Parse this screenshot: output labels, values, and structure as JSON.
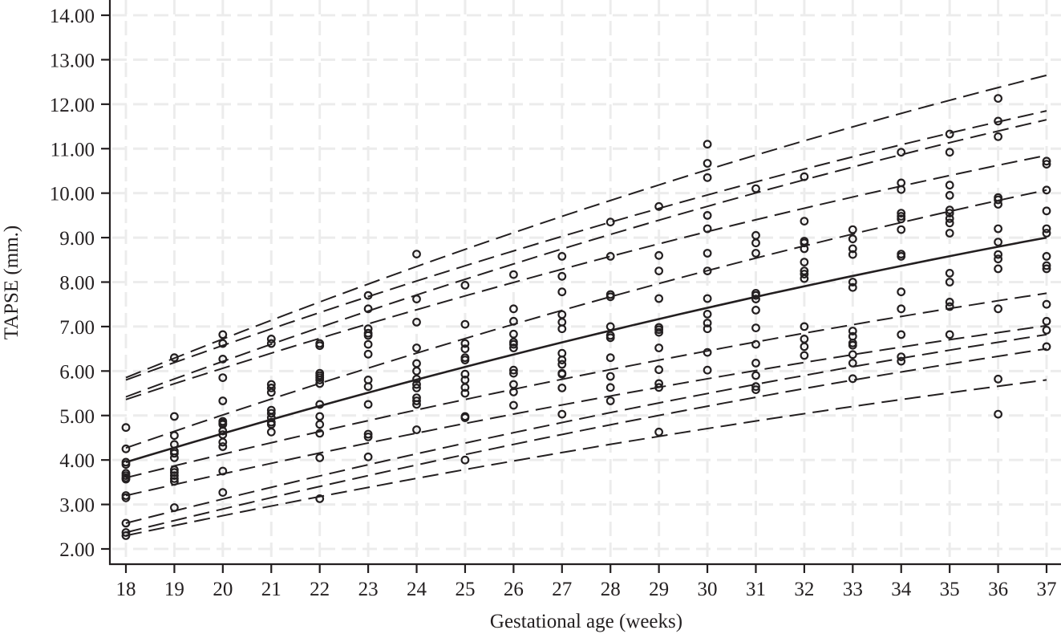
{
  "chart_data": {
    "type": "scatter",
    "title": "",
    "xlabel": "Gestational age (weeks)",
    "ylabel": "TAPSE (mm.)",
    "xlim": [
      18,
      37
    ],
    "ylim": [
      2.0,
      14.0
    ],
    "x_ticks": [
      18,
      19,
      20,
      21,
      22,
      23,
      24,
      25,
      26,
      27,
      28,
      29,
      30,
      31,
      32,
      33,
      34,
      35,
      36,
      37
    ],
    "y_ticks": [
      "2.00",
      "3.00",
      "4.00",
      "5.00",
      "6.00",
      "7.00",
      "8.00",
      "9.00",
      "10.00",
      "11.00",
      "12.00",
      "13.00",
      "14.00"
    ],
    "grid": true,
    "legend": null,
    "reference_curves": [
      {
        "name": "upper-percentile-1",
        "style": "dashed",
        "x": [
          18,
          37
        ],
        "y_start": 5.85,
        "y_end": 12.65
      },
      {
        "name": "upper-percentile-2",
        "style": "dashed",
        "x": [
          18,
          37
        ],
        "y_start": 5.8,
        "y_end": 11.85
      },
      {
        "name": "upper-percentile-3",
        "style": "dashed",
        "x": [
          18,
          37
        ],
        "y_start": 5.42,
        "y_end": 11.65
      },
      {
        "name": "upper-percentile-4",
        "style": "dashed",
        "x": [
          18,
          37
        ],
        "y_start": 5.36,
        "y_end": 10.85
      },
      {
        "name": "upper-percentile-5",
        "style": "dashed",
        "x": [
          18,
          37
        ],
        "y_start": 4.27,
        "y_end": 10.07
      },
      {
        "name": "mean",
        "style": "solid",
        "x": [
          18,
          37
        ],
        "y_start": 3.95,
        "y_end": 9.0
      },
      {
        "name": "lower-percentile-1",
        "style": "dashed",
        "x": [
          18,
          37
        ],
        "y_start": 3.6,
        "y_end": 7.75
      },
      {
        "name": "lower-percentile-2",
        "style": "dashed",
        "x": [
          18,
          37
        ],
        "y_start": 3.2,
        "y_end": 7.02
      },
      {
        "name": "lower-percentile-3",
        "style": "dashed",
        "x": [
          18,
          37
        ],
        "y_start": 2.58,
        "y_end": 6.82
      },
      {
        "name": "lower-percentile-4",
        "style": "dashed",
        "x": [
          18,
          37
        ],
        "y_start": 2.37,
        "y_end": 6.5
      },
      {
        "name": "lower-percentile-5",
        "style": "dashed",
        "x": [
          18,
          37
        ],
        "y_start": 2.3,
        "y_end": 5.8
      }
    ],
    "curve_shape": "concave (slightly decelerating growth)",
    "points": [
      [
        18,
        4.73
      ],
      [
        18,
        4.25
      ],
      [
        18,
        3.95
      ],
      [
        18,
        3.9
      ],
      [
        18,
        3.7
      ],
      [
        18,
        3.65
      ],
      [
        18,
        3.6
      ],
      [
        18,
        3.57
      ],
      [
        18,
        3.2
      ],
      [
        18,
        3.15
      ],
      [
        18,
        2.58
      ],
      [
        18,
        2.37
      ],
      [
        18,
        2.3
      ],
      [
        19,
        6.3
      ],
      [
        19,
        4.98
      ],
      [
        19,
        4.55
      ],
      [
        19,
        4.35
      ],
      [
        19,
        4.2
      ],
      [
        19,
        4.15
      ],
      [
        19,
        4.05
      ],
      [
        19,
        3.78
      ],
      [
        19,
        3.72
      ],
      [
        19,
        3.65
      ],
      [
        19,
        3.58
      ],
      [
        19,
        3.52
      ],
      [
        19,
        2.93
      ],
      [
        20,
        6.82
      ],
      [
        20,
        6.62
      ],
      [
        20,
        6.27
      ],
      [
        20,
        5.85
      ],
      [
        20,
        5.33
      ],
      [
        20,
        4.87
      ],
      [
        20,
        4.83
      ],
      [
        20,
        4.8
      ],
      [
        20,
        4.65
      ],
      [
        20,
        4.57
      ],
      [
        20,
        4.4
      ],
      [
        20,
        4.3
      ],
      [
        20,
        3.75
      ],
      [
        20,
        3.27
      ],
      [
        21,
        6.72
      ],
      [
        21,
        6.62
      ],
      [
        21,
        5.7
      ],
      [
        21,
        5.62
      ],
      [
        21,
        5.52
      ],
      [
        21,
        5.12
      ],
      [
        21,
        5.05
      ],
      [
        21,
        4.95
      ],
      [
        21,
        4.85
      ],
      [
        21,
        4.8
      ],
      [
        21,
        4.63
      ],
      [
        22,
        6.62
      ],
      [
        22,
        6.57
      ],
      [
        22,
        5.95
      ],
      [
        22,
        5.9
      ],
      [
        22,
        5.85
      ],
      [
        22,
        5.8
      ],
      [
        22,
        5.72
      ],
      [
        22,
        5.25
      ],
      [
        22,
        4.98
      ],
      [
        22,
        4.8
      ],
      [
        22,
        4.6
      ],
      [
        22,
        4.05
      ],
      [
        22,
        3.13
      ],
      [
        23,
        7.7
      ],
      [
        23,
        7.4
      ],
      [
        23,
        6.95
      ],
      [
        23,
        6.85
      ],
      [
        23,
        6.8
      ],
      [
        23,
        6.6
      ],
      [
        23,
        6.38
      ],
      [
        23,
        5.8
      ],
      [
        23,
        5.65
      ],
      [
        23,
        5.25
      ],
      [
        23,
        4.58
      ],
      [
        23,
        4.52
      ],
      [
        23,
        4.07
      ],
      [
        24,
        8.63
      ],
      [
        24,
        7.62
      ],
      [
        24,
        7.1
      ],
      [
        24,
        6.52
      ],
      [
        24,
        6.17
      ],
      [
        24,
        6.0
      ],
      [
        24,
        5.82
      ],
      [
        24,
        5.7
      ],
      [
        24,
        5.62
      ],
      [
        24,
        5.4
      ],
      [
        24,
        5.33
      ],
      [
        24,
        5.25
      ],
      [
        24,
        4.68
      ],
      [
        25,
        7.93
      ],
      [
        25,
        7.05
      ],
      [
        25,
        6.62
      ],
      [
        25,
        6.5
      ],
      [
        25,
        6.3
      ],
      [
        25,
        6.25
      ],
      [
        25,
        5.93
      ],
      [
        25,
        5.8
      ],
      [
        25,
        5.63
      ],
      [
        25,
        5.5
      ],
      [
        25,
        4.98
      ],
      [
        25,
        4.95
      ],
      [
        25,
        4.0
      ],
      [
        26,
        8.17
      ],
      [
        26,
        7.4
      ],
      [
        26,
        7.12
      ],
      [
        26,
        6.83
      ],
      [
        26,
        6.65
      ],
      [
        26,
        6.6
      ],
      [
        26,
        6.52
      ],
      [
        26,
        6.02
      ],
      [
        26,
        5.95
      ],
      [
        26,
        5.7
      ],
      [
        26,
        5.53
      ],
      [
        26,
        5.23
      ],
      [
        27,
        8.58
      ],
      [
        27,
        8.13
      ],
      [
        27,
        7.78
      ],
      [
        27,
        7.27
      ],
      [
        27,
        7.1
      ],
      [
        27,
        6.95
      ],
      [
        27,
        6.4
      ],
      [
        27,
        6.25
      ],
      [
        27,
        6.15
      ],
      [
        27,
        5.95
      ],
      [
        27,
        5.93
      ],
      [
        27,
        5.62
      ],
      [
        27,
        5.03
      ],
      [
        28,
        9.35
      ],
      [
        28,
        8.58
      ],
      [
        28,
        7.72
      ],
      [
        28,
        7.67
      ],
      [
        28,
        7.0
      ],
      [
        28,
        6.8
      ],
      [
        28,
        6.75
      ],
      [
        28,
        6.3
      ],
      [
        28,
        5.88
      ],
      [
        28,
        5.63
      ],
      [
        28,
        5.33
      ],
      [
        29,
        9.7
      ],
      [
        29,
        8.6
      ],
      [
        29,
        8.25
      ],
      [
        29,
        7.63
      ],
      [
        29,
        6.98
      ],
      [
        29,
        6.93
      ],
      [
        29,
        6.87
      ],
      [
        29,
        6.52
      ],
      [
        29,
        6.03
      ],
      [
        29,
        5.72
      ],
      [
        29,
        5.63
      ],
      [
        29,
        4.63
      ],
      [
        30,
        11.1
      ],
      [
        30,
        10.67
      ],
      [
        30,
        10.35
      ],
      [
        30,
        9.5
      ],
      [
        30,
        9.2
      ],
      [
        30,
        8.65
      ],
      [
        30,
        8.25
      ],
      [
        30,
        7.63
      ],
      [
        30,
        7.28
      ],
      [
        30,
        7.08
      ],
      [
        30,
        6.95
      ],
      [
        30,
        6.42
      ],
      [
        30,
        6.02
      ],
      [
        31,
        10.1
      ],
      [
        31,
        9.05
      ],
      [
        31,
        8.88
      ],
      [
        31,
        8.65
      ],
      [
        31,
        7.75
      ],
      [
        31,
        7.7
      ],
      [
        31,
        7.62
      ],
      [
        31,
        7.37
      ],
      [
        31,
        6.97
      ],
      [
        31,
        6.6
      ],
      [
        31,
        6.18
      ],
      [
        31,
        5.9
      ],
      [
        31,
        5.65
      ],
      [
        31,
        5.58
      ],
      [
        32,
        10.37
      ],
      [
        32,
        9.37
      ],
      [
        32,
        8.92
      ],
      [
        32,
        8.88
      ],
      [
        32,
        8.75
      ],
      [
        32,
        8.45
      ],
      [
        32,
        8.25
      ],
      [
        32,
        8.18
      ],
      [
        32,
        8.08
      ],
      [
        32,
        7.0
      ],
      [
        32,
        6.72
      ],
      [
        32,
        6.55
      ],
      [
        32,
        6.35
      ],
      [
        33,
        9.18
      ],
      [
        33,
        8.97
      ],
      [
        33,
        8.75
      ],
      [
        33,
        8.62
      ],
      [
        33,
        8.0
      ],
      [
        33,
        7.88
      ],
      [
        33,
        6.9
      ],
      [
        33,
        6.78
      ],
      [
        33,
        6.63
      ],
      [
        33,
        6.58
      ],
      [
        33,
        6.37
      ],
      [
        33,
        6.18
      ],
      [
        33,
        5.83
      ],
      [
        34,
        10.92
      ],
      [
        34,
        10.23
      ],
      [
        34,
        10.08
      ],
      [
        34,
        9.55
      ],
      [
        34,
        9.48
      ],
      [
        34,
        9.42
      ],
      [
        34,
        9.18
      ],
      [
        34,
        8.63
      ],
      [
        34,
        8.58
      ],
      [
        34,
        7.78
      ],
      [
        34,
        7.4
      ],
      [
        34,
        6.82
      ],
      [
        34,
        6.32
      ],
      [
        34,
        6.22
      ],
      [
        35,
        11.33
      ],
      [
        35,
        10.92
      ],
      [
        35,
        10.18
      ],
      [
        35,
        9.95
      ],
      [
        35,
        9.62
      ],
      [
        35,
        9.55
      ],
      [
        35,
        9.43
      ],
      [
        35,
        9.33
      ],
      [
        35,
        9.1
      ],
      [
        35,
        8.2
      ],
      [
        35,
        8.0
      ],
      [
        35,
        7.55
      ],
      [
        35,
        7.45
      ],
      [
        35,
        6.82
      ],
      [
        36,
        12.13
      ],
      [
        36,
        11.62
      ],
      [
        36,
        11.27
      ],
      [
        36,
        9.9
      ],
      [
        36,
        9.85
      ],
      [
        36,
        9.75
      ],
      [
        36,
        9.2
      ],
      [
        36,
        8.9
      ],
      [
        36,
        8.62
      ],
      [
        36,
        8.52
      ],
      [
        36,
        8.3
      ],
      [
        36,
        7.4
      ],
      [
        36,
        5.82
      ],
      [
        36,
        5.03
      ],
      [
        37,
        10.72
      ],
      [
        37,
        10.65
      ],
      [
        37,
        10.07
      ],
      [
        37,
        9.6
      ],
      [
        37,
        9.2
      ],
      [
        37,
        9.1
      ],
      [
        37,
        8.58
      ],
      [
        37,
        8.37
      ],
      [
        37,
        8.3
      ],
      [
        37,
        7.5
      ],
      [
        37,
        7.12
      ],
      [
        37,
        6.92
      ],
      [
        37,
        6.55
      ]
    ]
  }
}
